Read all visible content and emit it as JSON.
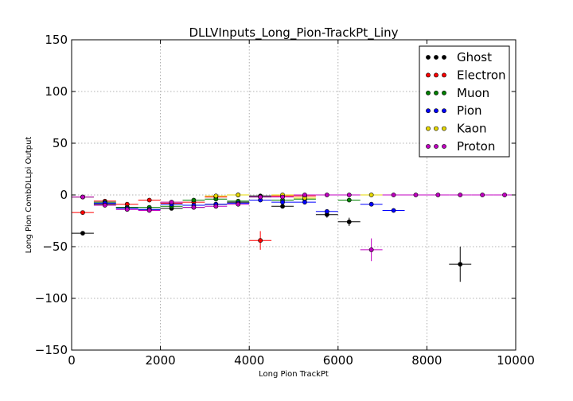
{
  "chart_data": {
    "type": "scatter",
    "title": "DLLVInputs_Long_Pion-TrackPt_Liny",
    "xlabel": "Long Pion TrackPt",
    "ylabel": "Long Pion CombDLLpi Output",
    "xlim": [
      0,
      10000
    ],
    "ylim": [
      -150,
      150
    ],
    "xticks": [
      0,
      2000,
      4000,
      6000,
      8000,
      10000
    ],
    "yticks": [
      -150,
      -100,
      -50,
      0,
      50,
      100,
      150
    ],
    "grid": true,
    "legend_position": "top-right",
    "bin_width": 500,
    "series": [
      {
        "name": "Ghost",
        "color": "#000000",
        "points": [
          {
            "x": 250,
            "y": -37,
            "yerr": 0
          },
          {
            "x": 750,
            "y": -9,
            "yerr": 0
          },
          {
            "x": 1250,
            "y": -12,
            "yerr": 0
          },
          {
            "x": 1750,
            "y": -14,
            "yerr": 0
          },
          {
            "x": 2250,
            "y": -13,
            "yerr": 0
          },
          {
            "x": 2750,
            "y": -12,
            "yerr": 0
          },
          {
            "x": 3250,
            "y": -9,
            "yerr": 0
          },
          {
            "x": 3750,
            "y": -7,
            "yerr": 0
          },
          {
            "x": 4250,
            "y": -1,
            "yerr": 0
          },
          {
            "x": 4750,
            "y": -11,
            "yerr": 0
          },
          {
            "x": 5750,
            "y": -19,
            "yerr": 3
          },
          {
            "x": 6250,
            "y": -26,
            "yerr": 4
          },
          {
            "x": 8750,
            "y": -67,
            "yerr": 17
          }
        ]
      },
      {
        "name": "Electron",
        "color": "#ff0000",
        "points": [
          {
            "x": 250,
            "y": -17,
            "yerr": 0
          },
          {
            "x": 750,
            "y": -6,
            "yerr": 0
          },
          {
            "x": 1250,
            "y": -9,
            "yerr": 0
          },
          {
            "x": 1750,
            "y": -5,
            "yerr": 0
          },
          {
            "x": 2250,
            "y": -8,
            "yerr": 0
          },
          {
            "x": 2750,
            "y": -7,
            "yerr": 0
          },
          {
            "x": 3250,
            "y": -2,
            "yerr": 0
          },
          {
            "x": 3750,
            "y": 0,
            "yerr": 0
          },
          {
            "x": 4250,
            "y": -44,
            "yerr": 9
          },
          {
            "x": 4750,
            "y": -1,
            "yerr": 0
          },
          {
            "x": 5250,
            "y": -1,
            "yerr": 0
          }
        ]
      },
      {
        "name": "Muon",
        "color": "#008000",
        "points": [
          {
            "x": 250,
            "y": -2,
            "yerr": 0
          },
          {
            "x": 750,
            "y": -7,
            "yerr": 0
          },
          {
            "x": 1250,
            "y": -12,
            "yerr": 0
          },
          {
            "x": 1750,
            "y": -12,
            "yerr": 0
          },
          {
            "x": 2250,
            "y": -11,
            "yerr": 0
          },
          {
            "x": 2750,
            "y": -5,
            "yerr": 0
          },
          {
            "x": 3250,
            "y": -4,
            "yerr": 0
          },
          {
            "x": 3750,
            "y": -6,
            "yerr": 0
          },
          {
            "x": 4250,
            "y": -2,
            "yerr": 0
          },
          {
            "x": 4750,
            "y": -5,
            "yerr": 0
          },
          {
            "x": 5250,
            "y": -4,
            "yerr": 0
          },
          {
            "x": 6250,
            "y": -5,
            "yerr": 0
          }
        ]
      },
      {
        "name": "Pion",
        "color": "#0000ff",
        "points": [
          {
            "x": 250,
            "y": -2,
            "yerr": 0
          },
          {
            "x": 750,
            "y": -8,
            "yerr": 0
          },
          {
            "x": 1250,
            "y": -13,
            "yerr": 0
          },
          {
            "x": 1750,
            "y": -14,
            "yerr": 0
          },
          {
            "x": 2250,
            "y": -9,
            "yerr": 0
          },
          {
            "x": 2750,
            "y": -10,
            "yerr": 0
          },
          {
            "x": 3250,
            "y": -9,
            "yerr": 0
          },
          {
            "x": 3750,
            "y": -8,
            "yerr": 0
          },
          {
            "x": 4250,
            "y": -5,
            "yerr": 0
          },
          {
            "x": 4750,
            "y": -7,
            "yerr": 0
          },
          {
            "x": 5250,
            "y": -7,
            "yerr": 0
          },
          {
            "x": 5750,
            "y": -16,
            "yerr": 0
          },
          {
            "x": 6750,
            "y": -9,
            "yerr": 0
          },
          {
            "x": 7250,
            "y": -15,
            "yerr": 0
          }
        ]
      },
      {
        "name": "Kaon",
        "color": "#e6d800",
        "points": [
          {
            "x": 250,
            "y": -2,
            "yerr": 0
          },
          {
            "x": 2250,
            "y": -7,
            "yerr": 0
          },
          {
            "x": 3250,
            "y": -1,
            "yerr": 0
          },
          {
            "x": 3750,
            "y": 0,
            "yerr": 0
          },
          {
            "x": 4750,
            "y": 0,
            "yerr": 0
          },
          {
            "x": 5250,
            "y": -3,
            "yerr": 0
          },
          {
            "x": 6750,
            "y": 0,
            "yerr": 0
          }
        ]
      },
      {
        "name": "Proton",
        "color": "#c000c0",
        "points": [
          {
            "x": 250,
            "y": -2,
            "yerr": 0
          },
          {
            "x": 750,
            "y": -10,
            "yerr": 0
          },
          {
            "x": 1250,
            "y": -14,
            "yerr": 0
          },
          {
            "x": 1750,
            "y": -15,
            "yerr": 0
          },
          {
            "x": 2250,
            "y": -7,
            "yerr": 0
          },
          {
            "x": 2750,
            "y": -12,
            "yerr": 0
          },
          {
            "x": 3250,
            "y": -11,
            "yerr": 0
          },
          {
            "x": 3750,
            "y": -9,
            "yerr": 0
          },
          {
            "x": 4250,
            "y": -2,
            "yerr": 0
          },
          {
            "x": 4750,
            "y": -2,
            "yerr": 0
          },
          {
            "x": 5250,
            "y": 0,
            "yerr": 0
          },
          {
            "x": 5750,
            "y": 0,
            "yerr": 0
          },
          {
            "x": 6250,
            "y": 0,
            "yerr": 0
          },
          {
            "x": 6750,
            "y": -53,
            "yerr": 11
          },
          {
            "x": 7250,
            "y": 0,
            "yerr": 0
          },
          {
            "x": 7750,
            "y": 0,
            "yerr": 0
          },
          {
            "x": 8250,
            "y": 0,
            "yerr": 0
          },
          {
            "x": 8750,
            "y": 0,
            "yerr": 0
          },
          {
            "x": 9250,
            "y": 0,
            "yerr": 0
          },
          {
            "x": 9750,
            "y": 0,
            "yerr": 0
          }
        ]
      }
    ]
  }
}
